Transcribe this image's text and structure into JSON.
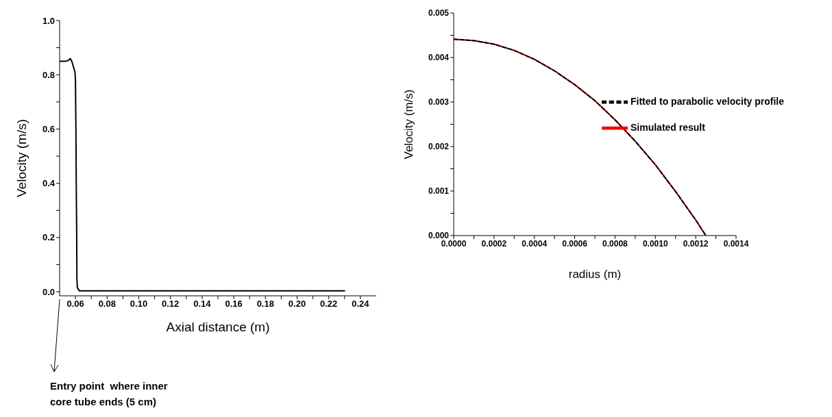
{
  "chart_data": [
    {
      "type": "line",
      "xlabel": "Axial distance (m)",
      "ylabel": "Velocity (m/s)",
      "x": [
        0.05,
        0.0538,
        0.0555,
        0.0567,
        0.0577,
        0.0597,
        0.06,
        0.0603,
        0.0605,
        0.0608,
        0.0609,
        0.0612,
        0.0625,
        0.23
      ],
      "series": [
        {
          "color": "#000000",
          "values": [
            0.85,
            0.85,
            0.853,
            0.86,
            0.85,
            0.81,
            0.78,
            0.6,
            0.4,
            0.2,
            0.05,
            0.015,
            0.003,
            0.003
          ]
        }
      ],
      "xlim": [
        0.05,
        0.25
      ],
      "xticks": [
        {
          "value": 0.06,
          "label": "0.06"
        },
        {
          "value": 0.07,
          "label": null
        },
        {
          "value": 0.08,
          "label": "0.08"
        },
        {
          "value": 0.09,
          "label": null
        },
        {
          "value": 0.1,
          "label": "0.10"
        },
        {
          "value": 0.11,
          "label": null
        },
        {
          "value": 0.12,
          "label": "0.12"
        },
        {
          "value": 0.13,
          "label": null
        },
        {
          "value": 0.14,
          "label": "0.14"
        },
        {
          "value": 0.15,
          "label": null
        },
        {
          "value": 0.16,
          "label": "0.16"
        },
        {
          "value": 0.17,
          "label": null
        },
        {
          "value": 0.18,
          "label": "0.18"
        },
        {
          "value": 0.19,
          "label": null
        },
        {
          "value": 0.2,
          "label": "0.20"
        },
        {
          "value": 0.21,
          "label": null
        },
        {
          "value": 0.22,
          "label": "0.22"
        },
        {
          "value": 0.23,
          "label": null
        },
        {
          "value": 0.24,
          "label": "0.24"
        }
      ],
      "ylim": [
        -0.015,
        1.0
      ],
      "yticks": [
        {
          "value": 0,
          "label": "0.0"
        },
        {
          "value": 0.1,
          "label": null
        },
        {
          "value": 0.2,
          "label": "0.2"
        },
        {
          "value": 0.3,
          "label": null
        },
        {
          "value": 0.4,
          "label": "0.4"
        },
        {
          "value": 0.5,
          "label": null
        },
        {
          "value": 0.6,
          "label": "0.6"
        },
        {
          "value": 0.7,
          "label": null
        },
        {
          "value": 0.8,
          "label": "0.8"
        },
        {
          "value": 0.9,
          "label": null
        },
        {
          "value": 1.0,
          "label": "1.0"
        }
      ],
      "annotations": [
        "Entry point  where inner core tube ends (5 cm)"
      ],
      "grid": false,
      "legend": false,
      "marker": "none",
      "line_style": "solid"
    },
    {
      "type": "line",
      "xlabel": "radius (m)",
      "ylabel": "Velocity (m/s)",
      "x": [
        0,
        0.0001,
        0.0002,
        0.0003,
        0.0004,
        0.0005,
        0.0006,
        0.0007,
        0.0008,
        0.0009,
        0.001,
        0.0011,
        0.0012,
        0.00125
      ],
      "series": [
        {
          "name": "Fitted to parabolic velocity profile",
          "color": "#000000",
          "line_style": "dashed",
          "values": [
            0.00441,
            0.00438,
            0.0043,
            0.00416,
            0.00396,
            0.0037,
            0.00339,
            0.00303,
            0.0026,
            0.00212,
            0.00159,
            0.00099,
            0.00035,
            0
          ]
        },
        {
          "name": "Simulated result",
          "color": "#ff0000",
          "line_style": "solid",
          "values": [
            0.00441,
            0.00438,
            0.0043,
            0.00416,
            0.00396,
            0.0037,
            0.00339,
            0.00303,
            0.0026,
            0.00212,
            0.00159,
            0.00099,
            0.00035,
            0
          ]
        }
      ],
      "xlim": [
        0,
        0.0014
      ],
      "xticks": [
        {
          "value": 0,
          "label": "0.0000"
        },
        {
          "value": 0.0001,
          "label": null
        },
        {
          "value": 0.0002,
          "label": "0.0002"
        },
        {
          "value": 0.0003,
          "label": null
        },
        {
          "value": 0.0004,
          "label": "0.0004"
        },
        {
          "value": 0.0005,
          "label": null
        },
        {
          "value": 0.0006,
          "label": "0.0006"
        },
        {
          "value": 0.0007,
          "label": null
        },
        {
          "value": 0.0008,
          "label": "0.0008"
        },
        {
          "value": 0.0009,
          "label": null
        },
        {
          "value": 0.001,
          "label": "0.0010"
        },
        {
          "value": 0.0011,
          "label": null
        },
        {
          "value": 0.0012,
          "label": "0.0012"
        },
        {
          "value": 0.0013,
          "label": null
        },
        {
          "value": 0.0014,
          "label": "0.0014"
        }
      ],
      "ylim": [
        0,
        0.005
      ],
      "yticks": [
        {
          "value": 0,
          "label": "0.000"
        },
        {
          "value": 0.0005,
          "label": null
        },
        {
          "value": 0.001,
          "label": "0.001"
        },
        {
          "value": 0.0015,
          "label": null
        },
        {
          "value": 0.002,
          "label": "0.002"
        },
        {
          "value": 0.0025,
          "label": null
        },
        {
          "value": 0.003,
          "label": "0.003"
        },
        {
          "value": 0.0035,
          "label": null
        },
        {
          "value": 0.004,
          "label": "0.004"
        },
        {
          "value": 0.0045,
          "label": null
        },
        {
          "value": 0.005,
          "label": "0.005"
        }
      ],
      "grid": false,
      "legend": "right",
      "marker": "none"
    }
  ]
}
